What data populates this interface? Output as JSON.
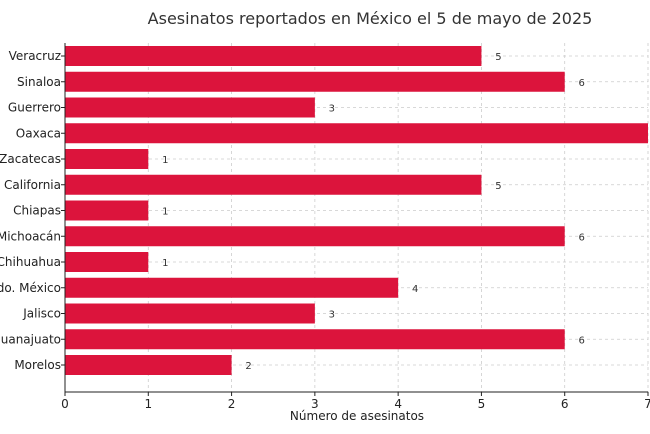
{
  "chart_data": {
    "type": "bar",
    "orientation": "horizontal",
    "title": "Asesinatos reportados en México el 5 de mayo de 2025",
    "xlabel": "Número de asesinatos",
    "ylabel": "",
    "xlim": [
      0,
      7
    ],
    "xticks": [
      "0",
      "1",
      "2",
      "3",
      "4",
      "5",
      "6",
      "7"
    ],
    "grid": true,
    "bar_color": "#dc143c",
    "categories": [
      "Veracruz",
      "Sinaloa",
      "Guerrero",
      "Oaxaca",
      "Zacatecas",
      "California",
      "Chiapas",
      "Michoacán",
      "Chihuahua",
      "Edo. México",
      "Jalisco",
      "Guanajuato",
      "Morelos"
    ],
    "values": [
      5,
      6,
      3,
      7,
      1,
      5,
      1,
      6,
      1,
      4,
      3,
      6,
      2
    ],
    "data_labels": [
      "5",
      "6",
      "3",
      "",
      "1",
      "5",
      "1",
      "6",
      "1",
      "4",
      "3",
      "6",
      "2"
    ]
  }
}
